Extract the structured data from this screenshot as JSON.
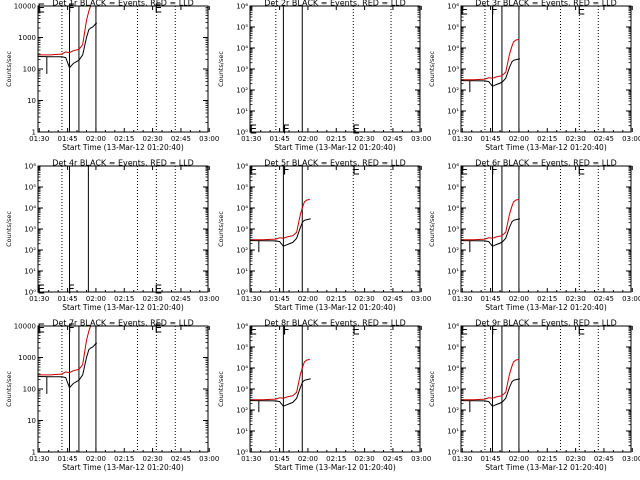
{
  "figure": {
    "ylabel": "Counts/sec",
    "xlabel": "Start Time (13-Mar-12 01:20:40)",
    "x_ticks": [
      "01:30",
      "01:45",
      "02:00",
      "02:15",
      "02:30",
      "02:45",
      "03:00"
    ],
    "colors": {
      "events": "#000000",
      "lld": "#cc0000"
    }
  },
  "chart_data": [
    {
      "type": "line",
      "title": "Det 1r BLACK = Events, RED = LLD",
      "y_scale": "log",
      "ylim": [
        1,
        10000
      ],
      "y_ticks": [
        {
          "v": 1,
          "t": "1"
        },
        {
          "v": 10,
          "t": "10"
        },
        {
          "v": 100,
          "t": "100"
        },
        {
          "v": 1000,
          "t": "1000"
        },
        {
          "v": 10000,
          "t": "10000"
        }
      ],
      "xlim_min": [
        9.33,
        99.33
      ],
      "solid_vlines_min": [
        26,
        31,
        40
      ],
      "dotted_vlines_min": [
        22,
        62,
        72,
        82
      ],
      "markers": [
        {
          "label": "E",
          "x_min": 11,
          "y": 9000
        },
        {
          "label": "F",
          "x_min": 27,
          "y": 9000
        },
        {
          "label": "E",
          "x_min": 73,
          "y": 9000
        }
      ],
      "series": [
        {
          "name": "BLACK = Events",
          "x": [
            9.33,
            16,
            22,
            24,
            26,
            28,
            31,
            33,
            35,
            36.3,
            37.2,
            38.5,
            40,
            40.5
          ],
          "y": [
            250,
            245,
            245,
            230,
            110,
            150,
            190,
            280,
            1000,
            1800,
            2000,
            2200,
            2800,
            2900
          ]
        },
        {
          "name": "RED = LLD",
          "x": [
            9.33,
            16,
            22,
            24,
            26,
            28,
            31,
            33,
            35,
            36.3,
            37.2,
            38.5,
            40
          ],
          "y": [
            280,
            280,
            300,
            350,
            330,
            380,
            420,
            600,
            3500,
            7000,
            10000,
            10000,
            10000
          ]
        }
      ]
    },
    {
      "type": "line",
      "title": "Det 2r BLACK = Events, RED = LLD",
      "y_scale": "log",
      "ylim": [
        1,
        1000000
      ],
      "y_ticks": [
        {
          "v": 1,
          "t": "10⁰"
        },
        {
          "v": 10,
          "t": "10¹"
        },
        {
          "v": 100,
          "t": "10²"
        },
        {
          "v": 1000,
          "t": "10³"
        },
        {
          "v": 10000,
          "t": "10⁴"
        },
        {
          "v": 100000,
          "t": "10⁵"
        },
        {
          "v": 1000000,
          "t": "10⁶"
        }
      ],
      "xlim_min": [
        9.33,
        99.33
      ],
      "solid_vlines_min": [
        27,
        37
      ],
      "dotted_vlines_min": [
        23,
        64,
        84
      ],
      "markers": [
        {
          "label": "E",
          "x_min": 11,
          "y": 1.5
        },
        {
          "label": "F",
          "x_min": 28.5,
          "y": 1.5
        },
        {
          "label": "E",
          "x_min": 65.5,
          "y": 1.5
        }
      ],
      "series": []
    },
    {
      "type": "line",
      "title": "Det 3r BLACK = Events, RED = LLD",
      "y_scale": "log",
      "ylim": [
        1,
        1000000
      ],
      "y_ticks": [
        {
          "v": 1,
          "t": "10⁰"
        },
        {
          "v": 10,
          "t": "10¹"
        },
        {
          "v": 100,
          "t": "10²"
        },
        {
          "v": 1000,
          "t": "10³"
        },
        {
          "v": 10000,
          "t": "10⁴"
        },
        {
          "v": 100000,
          "t": "10⁵"
        },
        {
          "v": 1000000,
          "t": "10⁶"
        }
      ],
      "xlim_min": [
        9.33,
        99.33
      ],
      "solid_vlines_min": [
        26,
        31,
        40
      ],
      "dotted_vlines_min": [
        22,
        62,
        72,
        82
      ],
      "markers": [
        {
          "label": "E",
          "x_min": 11,
          "y": 700000
        },
        {
          "label": "F",
          "x_min": 27,
          "y": 700000
        },
        {
          "label": "E",
          "x_min": 73,
          "y": 700000
        }
      ],
      "series": [
        {
          "name": "BLACK = Events",
          "x": [
            9.33,
            16,
            22,
            24,
            26,
            28,
            31,
            33,
            35,
            36.3,
            37.2,
            38.5,
            40,
            40.5
          ],
          "y": [
            280,
            275,
            270,
            250,
            150,
            180,
            230,
            360,
            1200,
            2200,
            2600,
            2800,
            3000,
            3100
          ]
        },
        {
          "name": "RED = LLD",
          "x": [
            9.33,
            16,
            22,
            24,
            26,
            28,
            31,
            33,
            35,
            36.3,
            37.2,
            38.5,
            40
          ],
          "y": [
            310,
            310,
            330,
            380,
            360,
            420,
            480,
            700,
            5000,
            12000,
            20000,
            24000,
            26000
          ]
        }
      ]
    },
    {
      "type": "line",
      "title": "Det 4r BLACK = Events, RED = LLD",
      "y_scale": "log",
      "ylim": [
        1,
        1000000
      ],
      "y_ticks": [
        {
          "v": 1,
          "t": "10⁰"
        },
        {
          "v": 10,
          "t": "10¹"
        },
        {
          "v": 100,
          "t": "10²"
        },
        {
          "v": 1000,
          "t": "10³"
        },
        {
          "v": 10000,
          "t": "10⁴"
        },
        {
          "v": 100000,
          "t": "10⁵"
        },
        {
          "v": 1000000,
          "t": "10⁶"
        }
      ],
      "xlim_min": [
        9.33,
        99.33
      ],
      "solid_vlines_min": [
        26,
        36
      ],
      "dotted_vlines_min": [
        22,
        62,
        72,
        82
      ],
      "markers": [
        {
          "label": "E",
          "x_min": 11,
          "y": 1.5
        },
        {
          "label": "F",
          "x_min": 27,
          "y": 1.5
        },
        {
          "label": "E",
          "x_min": 73,
          "y": 1.5
        }
      ],
      "series": []
    },
    {
      "type": "line",
      "title": "Det 5r BLACK = Events, RED = LLD",
      "y_scale": "log",
      "ylim": [
        1,
        1000000
      ],
      "y_ticks": [
        {
          "v": 1,
          "t": "10⁰"
        },
        {
          "v": 10,
          "t": "10¹"
        },
        {
          "v": 100,
          "t": "10²"
        },
        {
          "v": 1000,
          "t": "10³"
        },
        {
          "v": 10000,
          "t": "10⁴"
        },
        {
          "v": 100000,
          "t": "10⁵"
        },
        {
          "v": 1000000,
          "t": "10⁶"
        }
      ],
      "xlim_min": [
        9.33,
        99.33
      ],
      "solid_vlines_min": [
        27,
        37
      ],
      "dotted_vlines_min": [
        23,
        64,
        84
      ],
      "markers": [
        {
          "label": "E",
          "x_min": 11,
          "y": 700000
        },
        {
          "label": "F",
          "x_min": 28.5,
          "y": 700000
        },
        {
          "label": "E",
          "x_min": 65.5,
          "y": 700000
        }
      ],
      "series": [
        {
          "name": "BLACK = Events",
          "x": [
            9.33,
            16,
            23,
            25,
            27,
            29,
            32,
            34,
            36,
            37.3,
            38.2,
            39.5,
            41,
            41.5
          ],
          "y": [
            280,
            275,
            270,
            250,
            150,
            180,
            230,
            360,
            1200,
            2200,
            2600,
            2800,
            3000,
            3100
          ]
        },
        {
          "name": "RED = LLD",
          "x": [
            9.33,
            16,
            23,
            25,
            27,
            29,
            32,
            34,
            36,
            37.3,
            38.2,
            39.5,
            41
          ],
          "y": [
            310,
            310,
            330,
            380,
            360,
            420,
            480,
            700,
            5000,
            12000,
            20000,
            24000,
            26000
          ]
        }
      ]
    },
    {
      "type": "line",
      "title": "Det 6r BLACK = Events, RED = LLD",
      "y_scale": "log",
      "ylim": [
        1,
        1000000
      ],
      "y_ticks": [
        {
          "v": 1,
          "t": "10⁰"
        },
        {
          "v": 10,
          "t": "10¹"
        },
        {
          "v": 100,
          "t": "10²"
        },
        {
          "v": 1000,
          "t": "10³"
        },
        {
          "v": 10000,
          "t": "10⁴"
        },
        {
          "v": 100000,
          "t": "10⁵"
        },
        {
          "v": 1000000,
          "t": "10⁶"
        }
      ],
      "xlim_min": [
        9.33,
        99.33
      ],
      "solid_vlines_min": [
        26,
        31,
        40
      ],
      "dotted_vlines_min": [
        22,
        62,
        72,
        82
      ],
      "markers": [
        {
          "label": "E",
          "x_min": 11,
          "y": 700000
        },
        {
          "label": "F",
          "x_min": 27,
          "y": 700000
        },
        {
          "label": "E",
          "x_min": 73,
          "y": 700000
        }
      ],
      "series": [
        {
          "name": "BLACK = Events",
          "x": [
            9.33,
            16,
            22,
            24,
            26,
            28,
            31,
            33,
            35,
            36.3,
            37.2,
            38.5,
            40,
            40.5
          ],
          "y": [
            280,
            275,
            270,
            250,
            150,
            180,
            230,
            360,
            1200,
            2200,
            2600,
            2800,
            3000,
            3100
          ]
        },
        {
          "name": "RED = LLD",
          "x": [
            9.33,
            16,
            22,
            24,
            26,
            28,
            31,
            33,
            35,
            36.3,
            37.2,
            38.5,
            40
          ],
          "y": [
            310,
            310,
            330,
            380,
            360,
            420,
            480,
            700,
            5000,
            12000,
            20000,
            24000,
            26000
          ]
        }
      ]
    },
    {
      "type": "line",
      "title": "Det 7r BLACK = Events, RED = LLD",
      "y_scale": "log",
      "ylim": [
        1,
        10000
      ],
      "y_ticks": [
        {
          "v": 1,
          "t": "1"
        },
        {
          "v": 10,
          "t": "10"
        },
        {
          "v": 100,
          "t": "100"
        },
        {
          "v": 1000,
          "t": "1000"
        },
        {
          "v": 10000,
          "t": "10000"
        }
      ],
      "xlim_min": [
        9.33,
        99.33
      ],
      "solid_vlines_min": [
        26,
        31,
        40
      ],
      "dotted_vlines_min": [
        22,
        62,
        72,
        82
      ],
      "markers": [
        {
          "label": "E",
          "x_min": 11,
          "y": 9000
        },
        {
          "label": "F",
          "x_min": 27,
          "y": 9000
        },
        {
          "label": "E",
          "x_min": 73,
          "y": 9000
        }
      ],
      "series": [
        {
          "name": "BLACK = Events",
          "x": [
            9.33,
            16,
            22,
            24,
            26,
            28,
            31,
            33,
            35,
            36.3,
            37.2,
            38.5,
            40,
            40.5
          ],
          "y": [
            250,
            245,
            245,
            230,
            110,
            150,
            190,
            280,
            1000,
            1800,
            2000,
            2200,
            2800,
            2900
          ]
        },
        {
          "name": "RED = LLD",
          "x": [
            9.33,
            16,
            22,
            24,
            26,
            28,
            31,
            33,
            35,
            36.3,
            37.2,
            38.5,
            40
          ],
          "y": [
            280,
            280,
            300,
            350,
            330,
            380,
            420,
            600,
            3500,
            7000,
            10000,
            10000,
            10000
          ]
        }
      ]
    },
    {
      "type": "line",
      "title": "Det 8r BLACK = Events, RED = LLD",
      "y_scale": "log",
      "ylim": [
        1,
        1000000
      ],
      "y_ticks": [
        {
          "v": 1,
          "t": "10⁰"
        },
        {
          "v": 10,
          "t": "10¹"
        },
        {
          "v": 100,
          "t": "10²"
        },
        {
          "v": 1000,
          "t": "10³"
        },
        {
          "v": 10000,
          "t": "10⁴"
        },
        {
          "v": 100000,
          "t": "10⁵"
        },
        {
          "v": 1000000,
          "t": "10⁶"
        }
      ],
      "xlim_min": [
        9.33,
        99.33
      ],
      "solid_vlines_min": [
        27,
        37
      ],
      "dotted_vlines_min": [
        23,
        64,
        84
      ],
      "markers": [
        {
          "label": "E",
          "x_min": 11,
          "y": 700000
        },
        {
          "label": "F",
          "x_min": 28.5,
          "y": 700000
        },
        {
          "label": "E",
          "x_min": 65.5,
          "y": 700000
        }
      ],
      "series": [
        {
          "name": "BLACK = Events",
          "x": [
            9.33,
            16,
            23,
            25,
            27,
            29,
            32,
            34,
            36,
            37.3,
            38.2,
            39.5,
            41,
            41.5
          ],
          "y": [
            280,
            275,
            270,
            250,
            150,
            180,
            230,
            360,
            1200,
            2200,
            2600,
            2800,
            3000,
            3100
          ]
        },
        {
          "name": "RED = LLD",
          "x": [
            9.33,
            16,
            23,
            25,
            27,
            29,
            32,
            34,
            36,
            37.3,
            38.2,
            39.5,
            41
          ],
          "y": [
            310,
            310,
            330,
            380,
            360,
            420,
            480,
            700,
            5000,
            12000,
            20000,
            24000,
            26000
          ]
        }
      ]
    },
    {
      "type": "line",
      "title": "Det 9r BLACK = Events, RED = LLD",
      "y_scale": "log",
      "ylim": [
        1,
        1000000
      ],
      "y_ticks": [
        {
          "v": 1,
          "t": "10⁰"
        },
        {
          "v": 10,
          "t": "10¹"
        },
        {
          "v": 100,
          "t": "10²"
        },
        {
          "v": 1000,
          "t": "10³"
        },
        {
          "v": 10000,
          "t": "10⁴"
        },
        {
          "v": 100000,
          "t": "10⁵"
        },
        {
          "v": 1000000,
          "t": "10⁶"
        }
      ],
      "xlim_min": [
        9.33,
        99.33
      ],
      "solid_vlines_min": [
        26,
        31,
        40
      ],
      "dotted_vlines_min": [
        22,
        62,
        72,
        82
      ],
      "markers": [
        {
          "label": "E",
          "x_min": 11,
          "y": 700000
        },
        {
          "label": "F",
          "x_min": 27,
          "y": 700000
        },
        {
          "label": "E",
          "x_min": 73,
          "y": 700000
        }
      ],
      "series": [
        {
          "name": "BLACK = Events",
          "x": [
            9.33,
            16,
            22,
            24,
            26,
            28,
            31,
            33,
            35,
            36.3,
            37.2,
            38.5,
            40,
            40.5
          ],
          "y": [
            280,
            275,
            270,
            250,
            150,
            180,
            230,
            360,
            1200,
            2200,
            2600,
            2800,
            3000,
            3100
          ]
        },
        {
          "name": "RED = LLD",
          "x": [
            9.33,
            16,
            22,
            24,
            26,
            28,
            31,
            33,
            35,
            36.3,
            37.2,
            38.5,
            40
          ],
          "y": [
            310,
            310,
            330,
            380,
            360,
            420,
            480,
            700,
            5000,
            12000,
            20000,
            24000,
            26000
          ]
        }
      ]
    }
  ]
}
